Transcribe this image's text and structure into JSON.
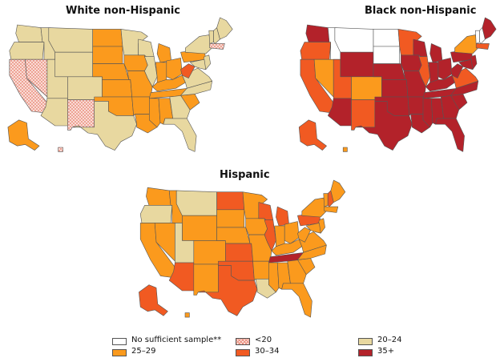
{
  "colors": {
    "no_sample": "#ffffff",
    "lt20": "#fde8e3",
    "c20_24": "#e8d8a0",
    "c25_29": "#fb9a1d",
    "c30_34": "#f15a22",
    "c35p": "#b3222a",
    "border": "#555555"
  },
  "maps": [
    {
      "title": "White non-Hispanic",
      "states": {
        "WA": "c20_24",
        "OR": "c20_24",
        "CA": "lt20",
        "NV": "lt20",
        "ID": "c20_24",
        "MT": "c20_24",
        "WY": "c20_24",
        "UT": "c20_24",
        "AZ": "c20_24",
        "CO": "c20_24",
        "NM": "lt20",
        "ND": "c25_29",
        "SD": "c25_29",
        "NE": "c25_29",
        "KS": "c25_29",
        "OK": "c25_29",
        "TX": "c20_24",
        "MN": "c20_24",
        "IA": "c25_29",
        "MO": "c25_29",
        "AR": "c25_29",
        "LA": "c25_29",
        "WI": "c20_24",
        "IL": "c20_24",
        "MI": "c25_29",
        "IN": "c25_29",
        "OH": "c25_29",
        "KY": "c25_29",
        "TN": "c25_29",
        "MS": "c25_29",
        "AL": "c25_29",
        "GA": "c20_24",
        "FL": "c20_24",
        "SC": "c25_29",
        "NC": "c20_24",
        "VA": "c20_24",
        "WV": "c30_34",
        "PA": "c25_29",
        "NY": "c20_24",
        "VT": "c20_24",
        "NH": "c20_24",
        "ME": "c20_24",
        "MA": "lt20",
        "NJ": "c20_24",
        "MD": "c20_24",
        "AK": "c25_29",
        "HI": "lt20"
      }
    },
    {
      "title": "Black non-Hispanic",
      "states": {
        "WA": "c35p",
        "OR": "c30_34",
        "CA": "c30_34",
        "NV": "c25_29",
        "ID": "no_sample",
        "MT": "no_sample",
        "WY": "c35p",
        "UT": "c30_34",
        "AZ": "c35p",
        "CO": "c25_29",
        "NM": "c30_34",
        "ND": "no_sample",
        "SD": "no_sample",
        "NE": "c35p",
        "KS": "c35p",
        "OK": "c35p",
        "TX": "c35p",
        "MN": "c30_34",
        "IA": "c35p",
        "MO": "c35p",
        "AR": "c35p",
        "LA": "c35p",
        "WI": "c35p",
        "IL": "c30_34",
        "MI": "c35p",
        "IN": "c35p",
        "OH": "c35p",
        "KY": "c35p",
        "TN": "c35p",
        "MS": "c35p",
        "AL": "c35p",
        "GA": "c35p",
        "FL": "c35p",
        "SC": "c35p",
        "NC": "c35p",
        "VA": "c30_34",
        "WV": "c35p",
        "PA": "c35p",
        "NY": "c25_29",
        "VT": "no_sample",
        "NH": "no_sample",
        "ME": "c35p",
        "MA": "c30_34",
        "NJ": "c35p",
        "MD": "c35p",
        "AK": "c30_34",
        "HI": "c25_29"
      }
    },
    {
      "title": "Hispanic",
      "states": {
        "WA": "c25_29",
        "OR": "c20_24",
        "CA": "c25_29",
        "NV": "c25_29",
        "ID": "c25_29",
        "MT": "c20_24",
        "WY": "c25_29",
        "UT": "c20_24",
        "AZ": "c30_34",
        "CO": "c25_29",
        "NM": "c25_29",
        "ND": "c30_34",
        "SD": "c25_29",
        "NE": "c25_29",
        "KS": "c30_34",
        "OK": "c30_34",
        "TX": "c30_34",
        "MN": "c25_29",
        "IA": "c25_29",
        "MO": "c25_29",
        "AR": "c25_29",
        "LA": "c20_24",
        "WI": "c30_34",
        "IL": "c30_34",
        "MI": "c30_34",
        "IN": "c25_29",
        "OH": "c25_29",
        "KY": "c25_29",
        "TN": "c35p",
        "MS": "c25_29",
        "AL": "c25_29",
        "GA": "c25_29",
        "FL": "c25_29",
        "SC": "c25_29",
        "NC": "c25_29",
        "VA": "c25_29",
        "WV": "c25_29",
        "PA": "c30_34",
        "NY": "c25_29",
        "VT": "c25_29",
        "NH": "c30_34",
        "ME": "c25_29",
        "MA": "c25_29",
        "NJ": "c25_29",
        "MD": "c25_29",
        "AK": "c30_34",
        "HI": "c25_29"
      }
    }
  ],
  "legend": [
    {
      "key": "no_sample",
      "label": "No sufficient sample**"
    },
    {
      "key": "lt20",
      "label": "<20"
    },
    {
      "key": "c20_24",
      "label": "20–24"
    },
    {
      "key": "c25_29",
      "label": "25–29"
    },
    {
      "key": "c30_34",
      "label": "30–34"
    },
    {
      "key": "c35p",
      "label": "35+"
    }
  ]
}
